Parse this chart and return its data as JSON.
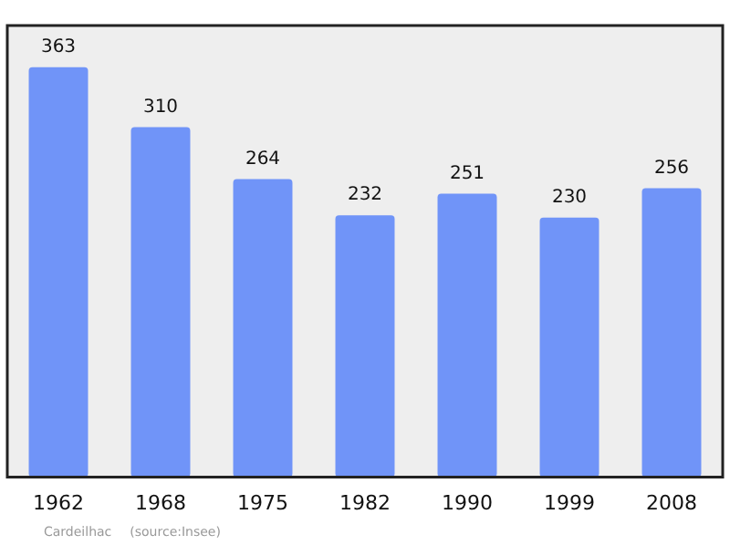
{
  "chart_data": {
    "type": "bar",
    "categories": [
      "1962",
      "1968",
      "1975",
      "1982",
      "1990",
      "1999",
      "2008"
    ],
    "values": [
      363,
      310,
      264,
      232,
      251,
      230,
      256
    ],
    "color": "#7094f8",
    "ylim": [
      0,
      400
    ],
    "tick_labels": "x",
    "grid": false,
    "legend": false,
    "data_labels": true,
    "annotations": [
      "Cardeilhac",
      "(source:Insee)"
    ]
  }
}
